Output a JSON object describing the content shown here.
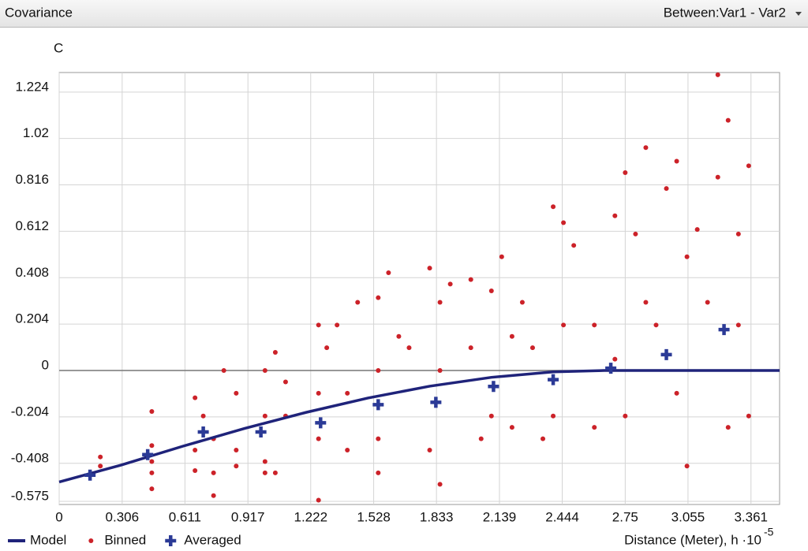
{
  "header": {
    "title": "Covariance",
    "selector": "Between:Var1 - Var2"
  },
  "chart_data": {
    "type": "scatter",
    "y_label": "C",
    "x_label": "Distance (Meter), h ·10",
    "x_label_exponent": "-5",
    "xlim": [
      0,
      3.5
    ],
    "ylim": [
      -0.589,
      1.31
    ],
    "xticks": [
      0,
      0.306,
      0.611,
      0.917,
      1.222,
      1.528,
      1.833,
      2.139,
      2.444,
      2.75,
      3.055,
      3.361
    ],
    "yticks": [
      1.224,
      1.02,
      0.816,
      0.612,
      0.408,
      0.204,
      0,
      -0.204,
      -0.408,
      -0.575
    ],
    "grid": true,
    "zero_line": true,
    "legend": "bottom-left",
    "series": [
      {
        "name": "Model",
        "type": "line",
        "color": "#1f237a",
        "x": [
          0,
          0.3,
          0.6,
          0.9,
          1.2,
          1.5,
          1.8,
          2.1,
          2.4,
          2.65,
          3.5
        ],
        "values": [
          -0.49,
          -0.416,
          -0.333,
          -0.255,
          -0.184,
          -0.121,
          -0.069,
          -0.03,
          -0.006,
          0,
          0
        ]
      },
      {
        "name": "Binned",
        "type": "dot",
        "color": "#cc2229",
        "x": [
          0.2,
          0.2,
          0.45,
          0.45,
          0.45,
          0.45,
          0.45,
          0.66,
          0.66,
          0.66,
          0.7,
          0.75,
          0.75,
          0.75,
          0.8,
          0.86,
          0.86,
          0.86,
          1.0,
          1.0,
          1.0,
          1.0,
          1.05,
          1.05,
          1.1,
          1.1,
          1.26,
          1.26,
          1.26,
          1.26,
          1.3,
          1.35,
          1.4,
          1.4,
          1.45,
          1.55,
          1.55,
          1.55,
          1.55,
          1.6,
          1.65,
          1.7,
          1.8,
          1.8,
          1.85,
          1.85,
          1.85,
          1.9,
          2.0,
          2.0,
          2.05,
          2.1,
          2.1,
          2.15,
          2.2,
          2.2,
          2.25,
          2.3,
          2.35,
          2.4,
          2.4,
          2.45,
          2.45,
          2.5,
          2.6,
          2.6,
          2.7,
          2.7,
          2.75,
          2.75,
          2.8,
          2.85,
          2.85,
          2.9,
          2.95,
          3.0,
          3.0,
          3.05,
          3.05,
          3.1,
          3.15,
          3.2,
          3.2,
          3.25,
          3.25,
          3.3,
          3.3,
          3.35,
          3.35
        ],
        "values": [
          -0.42,
          -0.38,
          -0.18,
          -0.33,
          -0.45,
          -0.52,
          -0.4,
          -0.12,
          -0.35,
          -0.44,
          -0.2,
          -0.3,
          -0.45,
          -0.55,
          0.0,
          -0.1,
          -0.35,
          -0.42,
          0.0,
          -0.2,
          -0.4,
          -0.45,
          0.08,
          -0.45,
          -0.05,
          -0.2,
          0.2,
          -0.1,
          -0.3,
          -0.57,
          0.1,
          0.2,
          -0.1,
          -0.35,
          0.3,
          0.32,
          0.0,
          -0.3,
          -0.45,
          0.43,
          0.15,
          0.1,
          0.45,
          -0.35,
          0.3,
          0.0,
          -0.5,
          0.38,
          0.4,
          0.1,
          -0.3,
          0.35,
          -0.2,
          0.5,
          0.15,
          -0.25,
          0.3,
          0.1,
          -0.3,
          0.72,
          -0.2,
          0.65,
          0.2,
          0.55,
          0.2,
          -0.25,
          0.68,
          0.05,
          0.87,
          -0.2,
          0.6,
          0.98,
          0.3,
          0.2,
          0.8,
          0.92,
          -0.1,
          0.5,
          -0.42,
          0.62,
          0.3,
          1.3,
          0.85,
          1.1,
          -0.25,
          0.6,
          0.2,
          0.9,
          -0.2
        ]
      },
      {
        "name": "Averaged",
        "type": "plus",
        "color": "#2b3a96",
        "x": [
          0.15,
          0.43,
          0.7,
          0.98,
          1.27,
          1.55,
          1.83,
          2.11,
          2.4,
          2.68,
          2.95,
          3.23
        ],
        "values": [
          -0.46,
          -0.37,
          -0.27,
          -0.27,
          -0.23,
          -0.15,
          -0.14,
          -0.07,
          -0.04,
          0.01,
          0.07,
          0.18
        ]
      }
    ]
  }
}
